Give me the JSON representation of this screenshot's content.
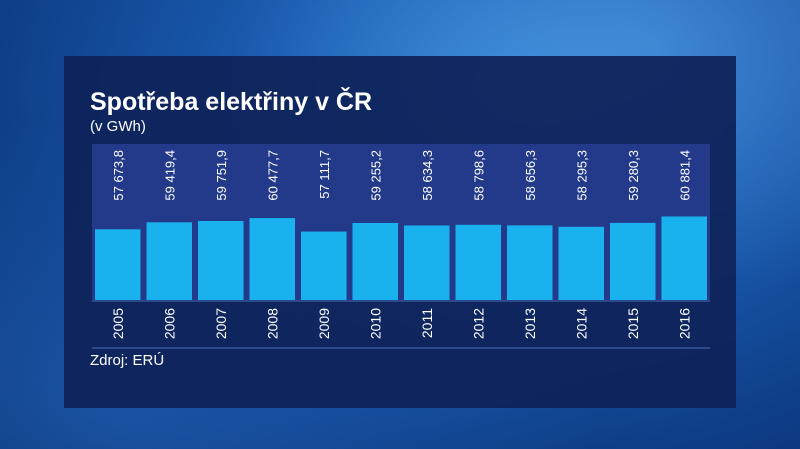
{
  "title": "Spotřeba elektřiny v ČR",
  "subtitle": "(v GWh)",
  "source": "Zdroj: ERÚ",
  "colors": {
    "bar": "#1ab2ee",
    "band": "#233a8a",
    "panel": "#0e2258",
    "grid": "#4a6fb8"
  },
  "chart_data": {
    "type": "bar",
    "title": "Spotřeba elektřiny v ČR",
    "subtitle": "(v GWh)",
    "xlabel": "",
    "ylabel": "",
    "categories": [
      "2005",
      "2006",
      "2007",
      "2008",
      "2009",
      "2010",
      "2011",
      "2012",
      "2013",
      "2014",
      "2015",
      "2016"
    ],
    "values": [
      57673.8,
      59419.4,
      59751.9,
      60477.7,
      57111.7,
      59255.2,
      58634.3,
      58798.6,
      58656.3,
      58295.3,
      59280.3,
      60881.4
    ],
    "value_labels": [
      "57 673,8",
      "59 419,4",
      "59 751,9",
      "60 477,7",
      "57 111,7",
      "59 255,2",
      "58 634,3",
      "58 798,6",
      "58 656,3",
      "58 295,3",
      "59 280,3",
      "60 881,4"
    ],
    "grid": false,
    "legend": "none"
  }
}
